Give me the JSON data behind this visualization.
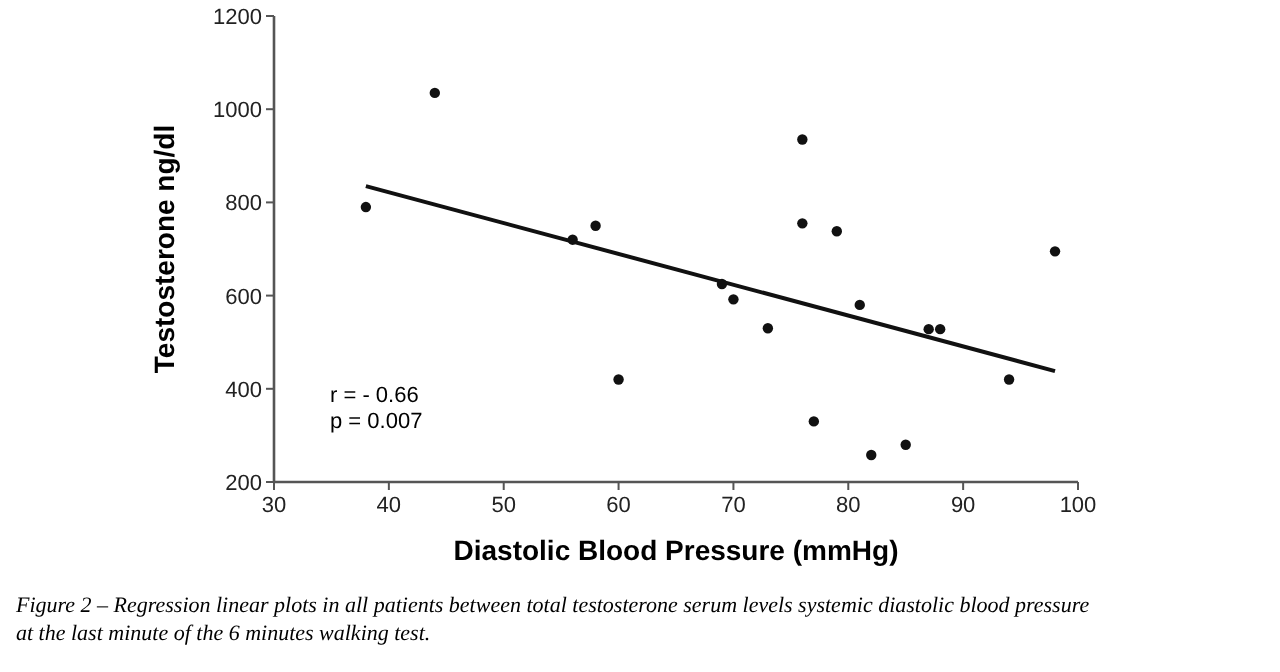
{
  "chart_data": {
    "type": "scatter",
    "xlabel": "Diastolic Blood Pressure (mmHg)",
    "ylabel": "Testosterone ng/dl",
    "xlim": [
      30,
      100
    ],
    "xticks": [
      30,
      40,
      50,
      60,
      70,
      80,
      90,
      100
    ],
    "ylim": [
      200,
      1200
    ],
    "yticks": [
      200,
      400,
      600,
      800,
      1000,
      1200
    ],
    "grid": false,
    "series": [
      {
        "marker": "circle",
        "color": "#111111",
        "x": [
          38,
          44,
          56,
          58,
          60,
          69,
          70,
          73,
          76,
          76,
          77,
          79,
          81,
          82,
          85,
          87,
          88,
          94,
          98
        ],
        "values": [
          790,
          1035,
          720,
          750,
          420,
          625,
          592,
          530,
          935,
          755,
          330,
          738,
          580,
          258,
          280,
          528,
          528,
          420,
          695
        ]
      },
      {
        "type": "line",
        "color": "#111111",
        "x": [
          38,
          98
        ],
        "values": [
          835,
          438
        ]
      }
    ],
    "annotations": [
      "r = - 0.66",
      "p = 0.007",
      "Figure 2 – Regression linear plots in all patients between total testosterone serum levels systemic diastolic blood pressure at the last minute of the 6 minutes walking test."
    ]
  }
}
